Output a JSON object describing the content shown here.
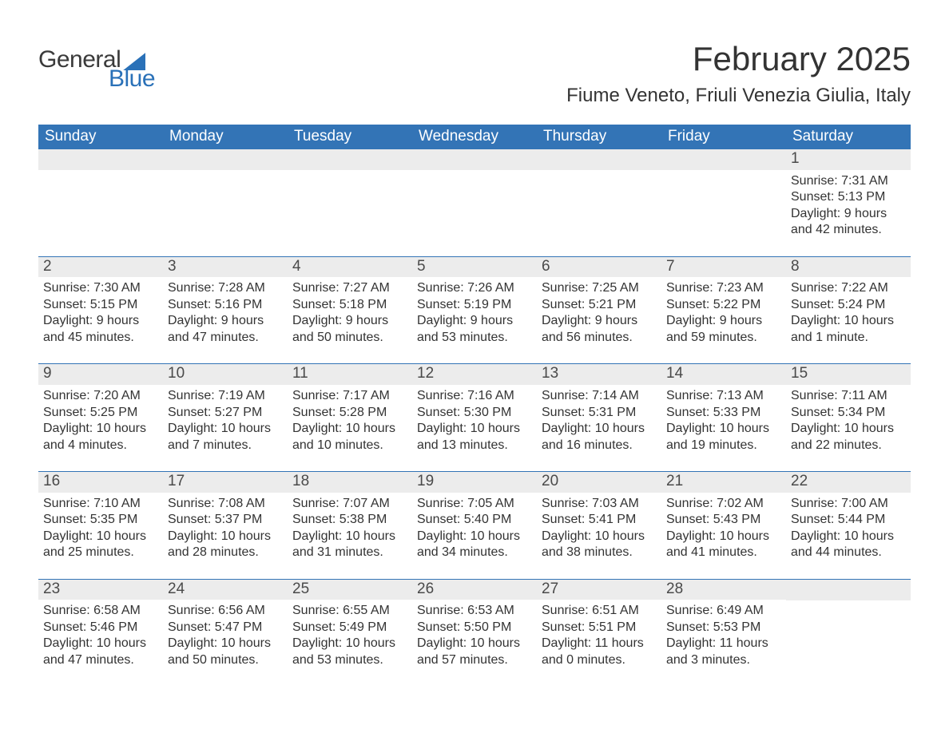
{
  "logo": {
    "word1": "General",
    "word2": "Blue"
  },
  "title": "February 2025",
  "location": "Fiume Veneto, Friuli Venezia Giulia, Italy",
  "colors": {
    "brand_blue": "#2a71b8",
    "header_blue": "#3374b6",
    "daynum_bg": "#ececec",
    "text": "#333333",
    "bg": "#ffffff"
  },
  "typography": {
    "title_fontsize": 42,
    "location_fontsize": 24,
    "dow_fontsize": 19,
    "daynum_fontsize": 19,
    "body_fontsize": 16
  },
  "days_of_week": [
    "Sunday",
    "Monday",
    "Tuesday",
    "Wednesday",
    "Thursday",
    "Friday",
    "Saturday"
  ],
  "weeks": [
    [
      {
        "n": "",
        "sunrise": "",
        "sunset": "",
        "daylight": ""
      },
      {
        "n": "",
        "sunrise": "",
        "sunset": "",
        "daylight": ""
      },
      {
        "n": "",
        "sunrise": "",
        "sunset": "",
        "daylight": ""
      },
      {
        "n": "",
        "sunrise": "",
        "sunset": "",
        "daylight": ""
      },
      {
        "n": "",
        "sunrise": "",
        "sunset": "",
        "daylight": ""
      },
      {
        "n": "",
        "sunrise": "",
        "sunset": "",
        "daylight": ""
      },
      {
        "n": "1",
        "sunrise": "Sunrise: 7:31 AM",
        "sunset": "Sunset: 5:13 PM",
        "daylight": "Daylight: 9 hours and 42 minutes."
      }
    ],
    [
      {
        "n": "2",
        "sunrise": "Sunrise: 7:30 AM",
        "sunset": "Sunset: 5:15 PM",
        "daylight": "Daylight: 9 hours and 45 minutes."
      },
      {
        "n": "3",
        "sunrise": "Sunrise: 7:28 AM",
        "sunset": "Sunset: 5:16 PM",
        "daylight": "Daylight: 9 hours and 47 minutes."
      },
      {
        "n": "4",
        "sunrise": "Sunrise: 7:27 AM",
        "sunset": "Sunset: 5:18 PM",
        "daylight": "Daylight: 9 hours and 50 minutes."
      },
      {
        "n": "5",
        "sunrise": "Sunrise: 7:26 AM",
        "sunset": "Sunset: 5:19 PM",
        "daylight": "Daylight: 9 hours and 53 minutes."
      },
      {
        "n": "6",
        "sunrise": "Sunrise: 7:25 AM",
        "sunset": "Sunset: 5:21 PM",
        "daylight": "Daylight: 9 hours and 56 minutes."
      },
      {
        "n": "7",
        "sunrise": "Sunrise: 7:23 AM",
        "sunset": "Sunset: 5:22 PM",
        "daylight": "Daylight: 9 hours and 59 minutes."
      },
      {
        "n": "8",
        "sunrise": "Sunrise: 7:22 AM",
        "sunset": "Sunset: 5:24 PM",
        "daylight": "Daylight: 10 hours and 1 minute."
      }
    ],
    [
      {
        "n": "9",
        "sunrise": "Sunrise: 7:20 AM",
        "sunset": "Sunset: 5:25 PM",
        "daylight": "Daylight: 10 hours and 4 minutes."
      },
      {
        "n": "10",
        "sunrise": "Sunrise: 7:19 AM",
        "sunset": "Sunset: 5:27 PM",
        "daylight": "Daylight: 10 hours and 7 minutes."
      },
      {
        "n": "11",
        "sunrise": "Sunrise: 7:17 AM",
        "sunset": "Sunset: 5:28 PM",
        "daylight": "Daylight: 10 hours and 10 minutes."
      },
      {
        "n": "12",
        "sunrise": "Sunrise: 7:16 AM",
        "sunset": "Sunset: 5:30 PM",
        "daylight": "Daylight: 10 hours and 13 minutes."
      },
      {
        "n": "13",
        "sunrise": "Sunrise: 7:14 AM",
        "sunset": "Sunset: 5:31 PM",
        "daylight": "Daylight: 10 hours and 16 minutes."
      },
      {
        "n": "14",
        "sunrise": "Sunrise: 7:13 AM",
        "sunset": "Sunset: 5:33 PM",
        "daylight": "Daylight: 10 hours and 19 minutes."
      },
      {
        "n": "15",
        "sunrise": "Sunrise: 7:11 AM",
        "sunset": "Sunset: 5:34 PM",
        "daylight": "Daylight: 10 hours and 22 minutes."
      }
    ],
    [
      {
        "n": "16",
        "sunrise": "Sunrise: 7:10 AM",
        "sunset": "Sunset: 5:35 PM",
        "daylight": "Daylight: 10 hours and 25 minutes."
      },
      {
        "n": "17",
        "sunrise": "Sunrise: 7:08 AM",
        "sunset": "Sunset: 5:37 PM",
        "daylight": "Daylight: 10 hours and 28 minutes."
      },
      {
        "n": "18",
        "sunrise": "Sunrise: 7:07 AM",
        "sunset": "Sunset: 5:38 PM",
        "daylight": "Daylight: 10 hours and 31 minutes."
      },
      {
        "n": "19",
        "sunrise": "Sunrise: 7:05 AM",
        "sunset": "Sunset: 5:40 PM",
        "daylight": "Daylight: 10 hours and 34 minutes."
      },
      {
        "n": "20",
        "sunrise": "Sunrise: 7:03 AM",
        "sunset": "Sunset: 5:41 PM",
        "daylight": "Daylight: 10 hours and 38 minutes."
      },
      {
        "n": "21",
        "sunrise": "Sunrise: 7:02 AM",
        "sunset": "Sunset: 5:43 PM",
        "daylight": "Daylight: 10 hours and 41 minutes."
      },
      {
        "n": "22",
        "sunrise": "Sunrise: 7:00 AM",
        "sunset": "Sunset: 5:44 PM",
        "daylight": "Daylight: 10 hours and 44 minutes."
      }
    ],
    [
      {
        "n": "23",
        "sunrise": "Sunrise: 6:58 AM",
        "sunset": "Sunset: 5:46 PM",
        "daylight": "Daylight: 10 hours and 47 minutes."
      },
      {
        "n": "24",
        "sunrise": "Sunrise: 6:56 AM",
        "sunset": "Sunset: 5:47 PM",
        "daylight": "Daylight: 10 hours and 50 minutes."
      },
      {
        "n": "25",
        "sunrise": "Sunrise: 6:55 AM",
        "sunset": "Sunset: 5:49 PM",
        "daylight": "Daylight: 10 hours and 53 minutes."
      },
      {
        "n": "26",
        "sunrise": "Sunrise: 6:53 AM",
        "sunset": "Sunset: 5:50 PM",
        "daylight": "Daylight: 10 hours and 57 minutes."
      },
      {
        "n": "27",
        "sunrise": "Sunrise: 6:51 AM",
        "sunset": "Sunset: 5:51 PM",
        "daylight": "Daylight: 11 hours and 0 minutes."
      },
      {
        "n": "28",
        "sunrise": "Sunrise: 6:49 AM",
        "sunset": "Sunset: 5:53 PM",
        "daylight": "Daylight: 11 hours and 3 minutes."
      },
      {
        "n": "",
        "sunrise": "",
        "sunset": "",
        "daylight": ""
      }
    ]
  ]
}
